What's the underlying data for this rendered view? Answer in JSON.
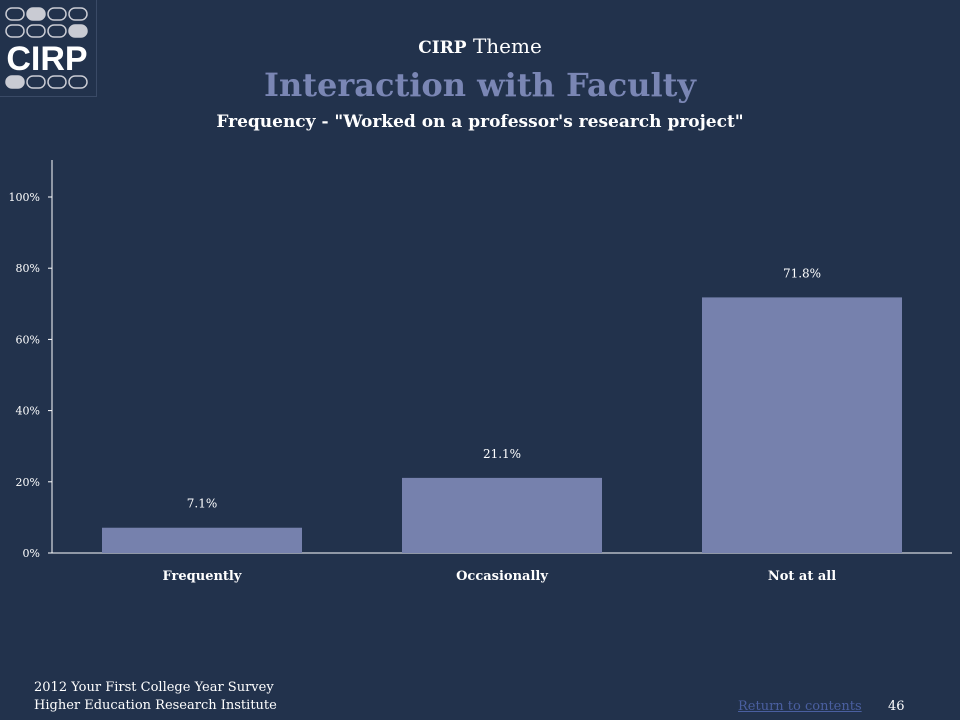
{
  "logo": {
    "text": "CIRP"
  },
  "header": {
    "theme_prefix": "CIRP",
    "theme_word": "Theme",
    "title": "Interaction with Faculty",
    "subtitle": "Frequency - \"Worked on a professor's research project\""
  },
  "colors": {
    "background": "#22324c",
    "bar": "#7681ad",
    "title_accent": "#7a86b4",
    "link": "#4a5fa0"
  },
  "chart_data": {
    "type": "bar",
    "categories": [
      "Frequently",
      "Occasionally",
      "Not at all"
    ],
    "values": [
      7.1,
      21.1,
      71.8
    ],
    "value_labels": [
      "7.1%",
      "21.1%",
      "71.8%"
    ],
    "y_ticks": [
      "0%",
      "20%",
      "40%",
      "60%",
      "80%",
      "100%"
    ],
    "ylim": [
      0,
      100
    ],
    "grid": false,
    "legend": "none",
    "xlabel": "",
    "ylabel": ""
  },
  "footer": {
    "line1": "2012 Your First College Year Survey",
    "line2": "Higher Education Research Institute",
    "return_link": "Return to contents",
    "page_number": "46"
  }
}
